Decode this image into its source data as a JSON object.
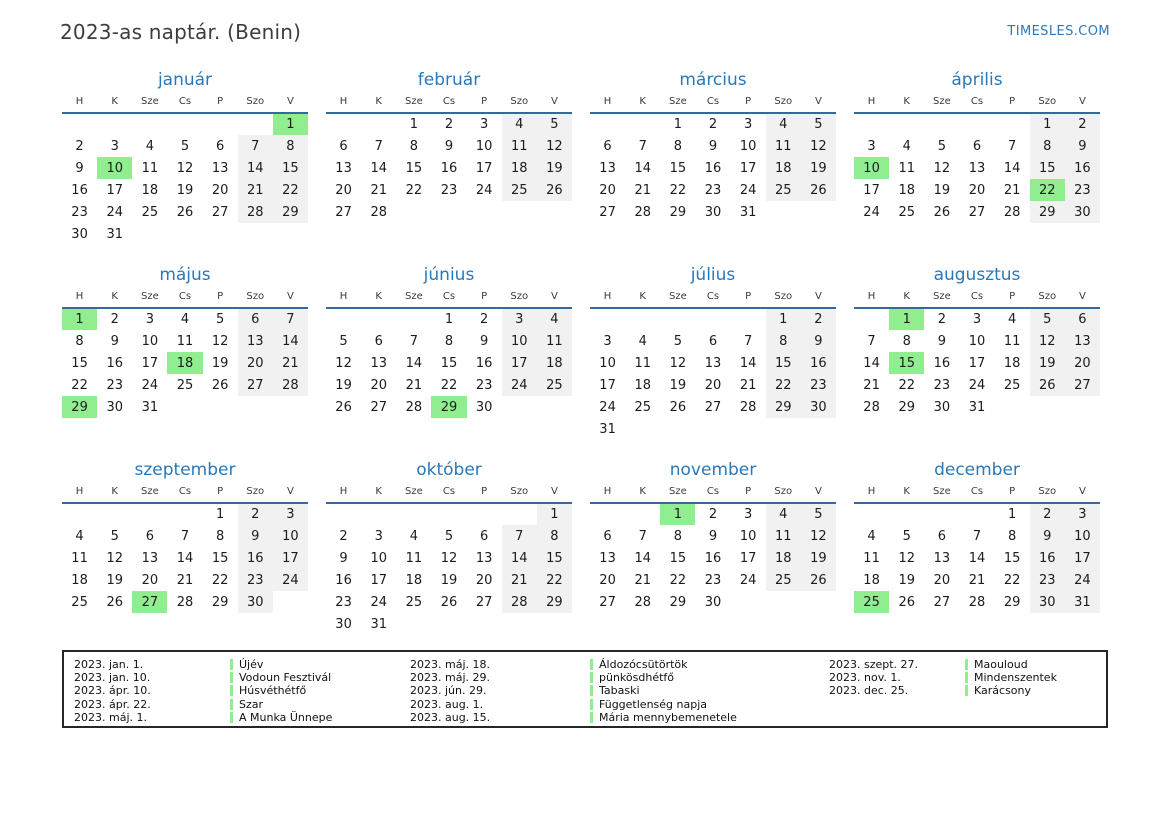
{
  "page": {
    "title": "2023-as naptár. (Benin)",
    "brand": "TIMESLES.COM"
  },
  "colors": {
    "accent_blue": "#2878bc",
    "header_line_blue": "#34699e",
    "holiday_green": "#90ee90",
    "weekend_gray": "#f1f1f1",
    "legend_border": "#262626"
  },
  "weekdays": [
    "H",
    "K",
    "Sze",
    "Cs",
    "P",
    "Szo",
    "V"
  ],
  "months": [
    {
      "name": "január",
      "highlights": [
        1,
        10
      ],
      "weeks": [
        [
          "",
          "",
          "",
          "",
          "",
          "",
          "1"
        ],
        [
          "2",
          "3",
          "4",
          "5",
          "6",
          "7",
          "8"
        ],
        [
          "9",
          "10",
          "11",
          "12",
          "13",
          "14",
          "15"
        ],
        [
          "16",
          "17",
          "18",
          "19",
          "20",
          "21",
          "22"
        ],
        [
          "23",
          "24",
          "25",
          "26",
          "27",
          "28",
          "29"
        ],
        [
          "30",
          "31",
          "",
          "",
          "",
          "",
          ""
        ]
      ]
    },
    {
      "name": "február",
      "highlights": [],
      "weeks": [
        [
          "",
          "",
          "1",
          "2",
          "3",
          "4",
          "5"
        ],
        [
          "6",
          "7",
          "8",
          "9",
          "10",
          "11",
          "12"
        ],
        [
          "13",
          "14",
          "15",
          "16",
          "17",
          "18",
          "19"
        ],
        [
          "20",
          "21",
          "22",
          "23",
          "24",
          "25",
          "26"
        ],
        [
          "27",
          "28",
          "",
          "",
          "",
          "",
          ""
        ]
      ]
    },
    {
      "name": "március",
      "highlights": [],
      "weeks": [
        [
          "",
          "",
          "1",
          "2",
          "3",
          "4",
          "5"
        ],
        [
          "6",
          "7",
          "8",
          "9",
          "10",
          "11",
          "12"
        ],
        [
          "13",
          "14",
          "15",
          "16",
          "17",
          "18",
          "19"
        ],
        [
          "20",
          "21",
          "22",
          "23",
          "24",
          "25",
          "26"
        ],
        [
          "27",
          "28",
          "29",
          "30",
          "31",
          "",
          ""
        ]
      ]
    },
    {
      "name": "április",
      "highlights": [
        10,
        22
      ],
      "weeks": [
        [
          "",
          "",
          "",
          "",
          "",
          "1",
          "2"
        ],
        [
          "3",
          "4",
          "5",
          "6",
          "7",
          "8",
          "9"
        ],
        [
          "10",
          "11",
          "12",
          "13",
          "14",
          "15",
          "16"
        ],
        [
          "17",
          "18",
          "19",
          "20",
          "21",
          "22",
          "23"
        ],
        [
          "24",
          "25",
          "26",
          "27",
          "28",
          "29",
          "30"
        ]
      ]
    },
    {
      "name": "május",
      "highlights": [
        1,
        18,
        29
      ],
      "weeks": [
        [
          "1",
          "2",
          "3",
          "4",
          "5",
          "6",
          "7"
        ],
        [
          "8",
          "9",
          "10",
          "11",
          "12",
          "13",
          "14"
        ],
        [
          "15",
          "16",
          "17",
          "18",
          "19",
          "20",
          "21"
        ],
        [
          "22",
          "23",
          "24",
          "25",
          "26",
          "27",
          "28"
        ],
        [
          "29",
          "30",
          "31",
          "",
          "",
          "",
          ""
        ]
      ]
    },
    {
      "name": "június",
      "highlights": [
        29
      ],
      "weeks": [
        [
          "",
          "",
          "",
          "1",
          "2",
          "3",
          "4"
        ],
        [
          "5",
          "6",
          "7",
          "8",
          "9",
          "10",
          "11"
        ],
        [
          "12",
          "13",
          "14",
          "15",
          "16",
          "17",
          "18"
        ],
        [
          "19",
          "20",
          "21",
          "22",
          "23",
          "24",
          "25"
        ],
        [
          "26",
          "27",
          "28",
          "29",
          "30",
          "",
          ""
        ]
      ]
    },
    {
      "name": "július",
      "highlights": [],
      "weeks": [
        [
          "",
          "",
          "",
          "",
          "",
          "1",
          "2"
        ],
        [
          "3",
          "4",
          "5",
          "6",
          "7",
          "8",
          "9"
        ],
        [
          "10",
          "11",
          "12",
          "13",
          "14",
          "15",
          "16"
        ],
        [
          "17",
          "18",
          "19",
          "20",
          "21",
          "22",
          "23"
        ],
        [
          "24",
          "25",
          "26",
          "27",
          "28",
          "29",
          "30"
        ],
        [
          "31",
          "",
          "",
          "",
          "",
          "",
          ""
        ]
      ]
    },
    {
      "name": "augusztus",
      "highlights": [
        1,
        15
      ],
      "weeks": [
        [
          "",
          "1",
          "2",
          "3",
          "4",
          "5",
          "6"
        ],
        [
          "7",
          "8",
          "9",
          "10",
          "11",
          "12",
          "13"
        ],
        [
          "14",
          "15",
          "16",
          "17",
          "18",
          "19",
          "20"
        ],
        [
          "21",
          "22",
          "23",
          "24",
          "25",
          "26",
          "27"
        ],
        [
          "28",
          "29",
          "30",
          "31",
          "",
          "",
          ""
        ]
      ]
    },
    {
      "name": "szeptember",
      "highlights": [
        27
      ],
      "weeks": [
        [
          "",
          "",
          "",
          "",
          "1",
          "2",
          "3"
        ],
        [
          "4",
          "5",
          "6",
          "7",
          "8",
          "9",
          "10"
        ],
        [
          "11",
          "12",
          "13",
          "14",
          "15",
          "16",
          "17"
        ],
        [
          "18",
          "19",
          "20",
          "21",
          "22",
          "23",
          "24"
        ],
        [
          "25",
          "26",
          "27",
          "28",
          "29",
          "30",
          ""
        ]
      ]
    },
    {
      "name": "október",
      "highlights": [],
      "weeks": [
        [
          "",
          "",
          "",
          "",
          "",
          "",
          "1"
        ],
        [
          "2",
          "3",
          "4",
          "5",
          "6",
          "7",
          "8"
        ],
        [
          "9",
          "10",
          "11",
          "12",
          "13",
          "14",
          "15"
        ],
        [
          "16",
          "17",
          "18",
          "19",
          "20",
          "21",
          "22"
        ],
        [
          "23",
          "24",
          "25",
          "26",
          "27",
          "28",
          "29"
        ],
        [
          "30",
          "31",
          "",
          "",
          "",
          "",
          ""
        ]
      ]
    },
    {
      "name": "november",
      "highlights": [
        1
      ],
      "weeks": [
        [
          "",
          "",
          "1",
          "2",
          "3",
          "4",
          "5"
        ],
        [
          "6",
          "7",
          "8",
          "9",
          "10",
          "11",
          "12"
        ],
        [
          "13",
          "14",
          "15",
          "16",
          "17",
          "18",
          "19"
        ],
        [
          "20",
          "21",
          "22",
          "23",
          "24",
          "25",
          "26"
        ],
        [
          "27",
          "28",
          "29",
          "30",
          "",
          "",
          ""
        ]
      ]
    },
    {
      "name": "december",
      "highlights": [
        25
      ],
      "weeks": [
        [
          "",
          "",
          "",
          "",
          "1",
          "2",
          "3"
        ],
        [
          "4",
          "5",
          "6",
          "7",
          "8",
          "9",
          "10"
        ],
        [
          "11",
          "12",
          "13",
          "14",
          "15",
          "16",
          "17"
        ],
        [
          "18",
          "19",
          "20",
          "21",
          "22",
          "23",
          "24"
        ],
        [
          "25",
          "26",
          "27",
          "28",
          "29",
          "30",
          "31"
        ]
      ]
    }
  ],
  "legend": {
    "groups": [
      {
        "entries": [
          {
            "date": "2023. jan. 1.",
            "name": "Újév"
          },
          {
            "date": "2023. jan. 10.",
            "name": "Vodoun Fesztivál"
          },
          {
            "date": "2023. ápr. 10.",
            "name": "Húsvéthétfő"
          },
          {
            "date": "2023. ápr. 22.",
            "name": "Szar"
          },
          {
            "date": "2023. máj. 1.",
            "name": "A Munka Ünnepe"
          }
        ]
      },
      {
        "entries": [
          {
            "date": "2023. máj. 18.",
            "name": "Áldozócsütörtök"
          },
          {
            "date": "2023. máj. 29.",
            "name": "pünkösdhétfő"
          },
          {
            "date": "2023. jún. 29.",
            "name": "Tabaski"
          },
          {
            "date": "2023. aug. 1.",
            "name": "Függetlenség napja"
          },
          {
            "date": "2023. aug. 15.",
            "name": "Mária mennybemenetele"
          }
        ]
      },
      {
        "entries": [
          {
            "date": "2023. szept. 27.",
            "name": "Maouloud"
          },
          {
            "date": "2023. nov. 1.",
            "name": "Mindenszentek"
          },
          {
            "date": "2023. dec. 25.",
            "name": "Karácsony"
          }
        ]
      }
    ]
  }
}
